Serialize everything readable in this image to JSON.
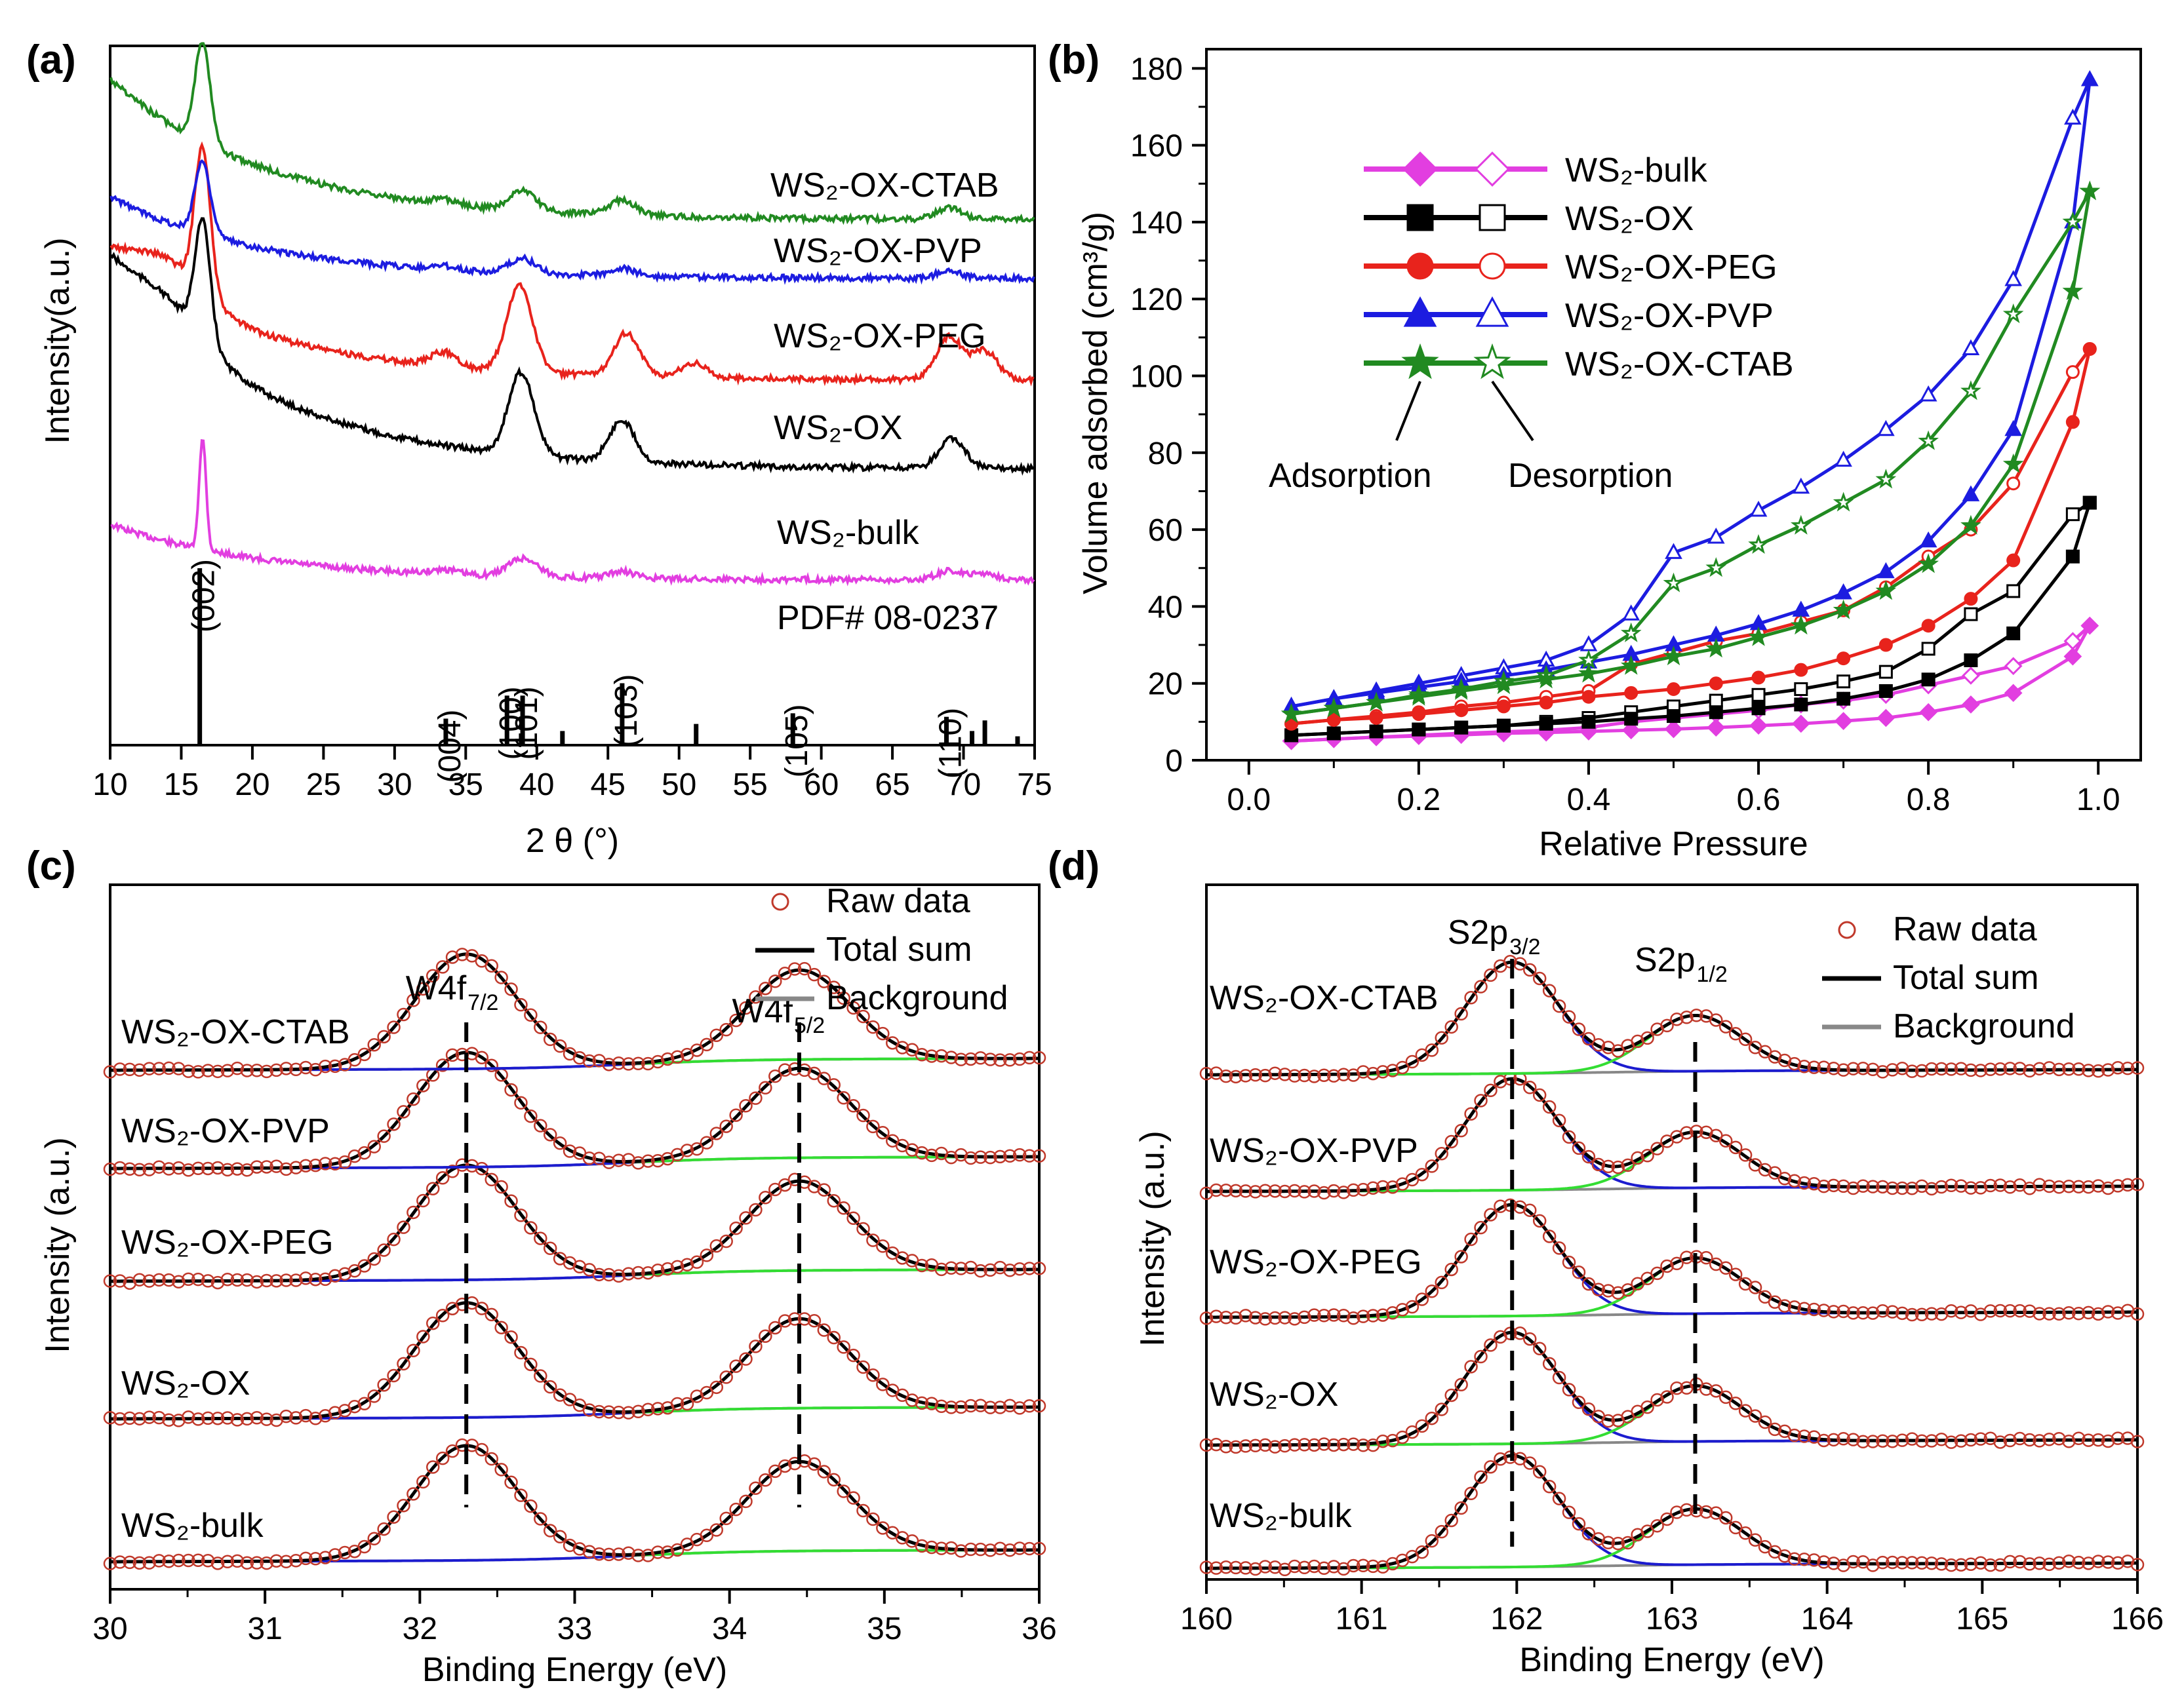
{
  "chart_data": [
    {
      "id": "a",
      "panel_label": "(a)",
      "type": "line",
      "title": "",
      "xlabel": "2 θ (°)",
      "ylabel": "Intensity(a.u.)",
      "xlim": [
        10,
        75
      ],
      "xticks": [
        "10",
        "15",
        "20",
        "25",
        "30",
        "35",
        "40",
        "45",
        "50",
        "55",
        "60",
        "65",
        "70",
        "75"
      ],
      "series": [
        {
          "name": "WS₂-bulk",
          "color": "#e23ee0",
          "peaks": [
            [
              16.5,
              1.0
            ],
            [
              33.5,
              0.04
            ],
            [
              38.5,
              0.09
            ],
            [
              39.5,
              0.1
            ],
            [
              46.0,
              0.06
            ],
            [
              69.0,
              0.08
            ],
            [
              71.5,
              0.06
            ]
          ]
        },
        {
          "name": "WS₂-OX",
          "color": "#000000",
          "peaks": [
            [
              16.5,
              1.0
            ],
            [
              38.9,
              0.7
            ],
            [
              46.0,
              0.35
            ],
            [
              69.2,
              0.25
            ]
          ]
        },
        {
          "name": "WS₂-OX-PEG",
          "color": "#e8231c",
          "peaks": [
            [
              16.5,
              1.0
            ],
            [
              33.5,
              0.1
            ],
            [
              38.8,
              0.6
            ],
            [
              46.3,
              0.3
            ],
            [
              51.0,
              0.1
            ],
            [
              69.0,
              0.3
            ],
            [
              71.5,
              0.2
            ]
          ]
        },
        {
          "name": "WS₂-OX-PVP",
          "color": "#1c1ce0",
          "peaks": [
            [
              16.5,
              1.0
            ],
            [
              33.5,
              0.05
            ],
            [
              39.0,
              0.2
            ],
            [
              46.0,
              0.1
            ],
            [
              69.0,
              0.1
            ]
          ]
        },
        {
          "name": "WS₂-OX-CTAB",
          "color": "#218a21",
          "peaks": [
            [
              16.5,
              1.0
            ],
            [
              33.5,
              0.05
            ],
            [
              39.0,
              0.2
            ],
            [
              46.0,
              0.15
            ],
            [
              69.0,
              0.12
            ]
          ]
        }
      ],
      "reference": {
        "name": "PDF# 08-0237",
        "lines": [
          {
            "x": 16.3,
            "h": 1.0,
            "label": "(002)"
          },
          {
            "x": 33.6,
            "h": 0.15,
            "label": "(004)"
          },
          {
            "x": 37.9,
            "h": 0.28,
            "label": "(100)"
          },
          {
            "x": 39.0,
            "h": 0.28,
            "label": "(101)"
          },
          {
            "x": 41.8,
            "h": 0.08,
            "label": ""
          },
          {
            "x": 46.0,
            "h": 0.35,
            "label": "(103)"
          },
          {
            "x": 51.2,
            "h": 0.12,
            "label": ""
          },
          {
            "x": 58.0,
            "h": 0.18,
            "label": "(105)"
          },
          {
            "x": 68.8,
            "h": 0.16,
            "label": "(110)"
          },
          {
            "x": 70.6,
            "h": 0.08,
            "label": ""
          },
          {
            "x": 71.5,
            "h": 0.14,
            "label": ""
          },
          {
            "x": 73.8,
            "h": 0.05,
            "label": ""
          }
        ]
      }
    },
    {
      "id": "b",
      "panel_label": "(b)",
      "type": "line",
      "title": "",
      "xlabel": "Relative Pressure",
      "ylabel": "Volume adsorbed (cm³/g)",
      "xlim": [
        -0.05,
        1.05
      ],
      "ylim": [
        0,
        185
      ],
      "xticks": [
        0.0,
        0.2,
        0.4,
        0.6,
        0.8,
        1.0
      ],
      "xtick_labels": [
        "0.0",
        "0.2",
        "0.4",
        "0.6",
        "0.8",
        "1.0"
      ],
      "yticks": [
        0,
        20,
        40,
        60,
        80,
        100,
        120,
        140,
        160,
        180
      ],
      "ytick_labels": [
        "0",
        "20",
        "40",
        "60",
        "80",
        "100",
        "120",
        "140",
        "160",
        "180"
      ],
      "legend_position": "top-left",
      "legend_labels": {
        "adsorption": "Adsorption",
        "desorption": "Desorption"
      },
      "series": [
        {
          "name": "WS₂-bulk",
          "color": "#e23ee0",
          "marker": "diamond",
          "x": [
            0.05,
            0.1,
            0.15,
            0.2,
            0.25,
            0.3,
            0.35,
            0.4,
            0.45,
            0.5,
            0.55,
            0.6,
            0.65,
            0.7,
            0.75,
            0.8,
            0.85,
            0.9,
            0.97,
            0.99
          ],
          "adsorption": [
            5,
            5.5,
            6,
            6.3,
            6.6,
            7,
            7.2,
            7.5,
            7.8,
            8.1,
            8.5,
            9,
            9.5,
            10.2,
            11,
            12.5,
            14.5,
            17.5,
            27,
            35
          ],
          "desorption": [
            5,
            5.5,
            6,
            6.5,
            7,
            7.4,
            7.8,
            8.5,
            10,
            11,
            12,
            13,
            14.5,
            15.5,
            17,
            19.5,
            22,
            24.5,
            31,
            35
          ]
        },
        {
          "name": "WS₂-OX",
          "color": "#000000",
          "marker": "square",
          "x": [
            0.05,
            0.1,
            0.15,
            0.2,
            0.25,
            0.3,
            0.35,
            0.4,
            0.45,
            0.5,
            0.55,
            0.6,
            0.65,
            0.7,
            0.75,
            0.8,
            0.85,
            0.9,
            0.97,
            0.99
          ],
          "adsorption": [
            6.5,
            7,
            7.5,
            8,
            8.5,
            9,
            9.5,
            10,
            10.8,
            11.5,
            12.5,
            13.5,
            14.5,
            16,
            18,
            21,
            26,
            33,
            53,
            67
          ],
          "desorption": [
            6.5,
            7,
            7.5,
            8,
            8.5,
            9,
            10,
            11,
            12.5,
            14,
            15.5,
            17,
            18.5,
            20.5,
            23,
            29,
            38,
            44,
            64,
            67
          ]
        },
        {
          "name": "WS₂-OX-PEG",
          "color": "#e8231c",
          "marker": "circle",
          "x": [
            0.05,
            0.1,
            0.15,
            0.2,
            0.25,
            0.3,
            0.35,
            0.4,
            0.45,
            0.5,
            0.55,
            0.6,
            0.65,
            0.7,
            0.75,
            0.8,
            0.85,
            0.9,
            0.97,
            0.99
          ],
          "adsorption": [
            9.5,
            10.5,
            11,
            12,
            13,
            14,
            15,
            16.5,
            17.5,
            18.5,
            20,
            21.5,
            23.5,
            26.5,
            30,
            35,
            42,
            52,
            88,
            107
          ],
          "desorption": [
            9.5,
            10.5,
            11.5,
            12.5,
            14,
            15,
            16.5,
            18,
            25,
            28,
            31,
            33,
            36,
            39,
            45,
            53,
            60,
            72,
            101,
            107
          ]
        },
        {
          "name": "WS₂-OX-PVP",
          "color": "#1c1ce0",
          "marker": "triangle",
          "x": [
            0.05,
            0.1,
            0.15,
            0.2,
            0.25,
            0.3,
            0.35,
            0.4,
            0.45,
            0.5,
            0.55,
            0.6,
            0.65,
            0.7,
            0.75,
            0.8,
            0.85,
            0.9,
            0.97,
            0.99
          ],
          "adsorption": [
            14,
            16,
            17.5,
            19,
            20.5,
            22,
            23.5,
            25.5,
            27.5,
            30,
            32.5,
            35.5,
            39,
            43.5,
            49,
            57,
            69,
            86,
            140,
            177
          ],
          "desorption": [
            14,
            16,
            18,
            20,
            22,
            24,
            26,
            30,
            38,
            54,
            58,
            65,
            71,
            78,
            86,
            95,
            107,
            125,
            167,
            177
          ]
        },
        {
          "name": "WS₂-OX-CTAB",
          "color": "#218a21",
          "marker": "star",
          "x": [
            0.05,
            0.1,
            0.15,
            0.2,
            0.25,
            0.3,
            0.35,
            0.4,
            0.45,
            0.5,
            0.55,
            0.6,
            0.65,
            0.7,
            0.75,
            0.8,
            0.85,
            0.9,
            0.97,
            0.99
          ],
          "adsorption": [
            12,
            13.5,
            15,
            16.5,
            18,
            19.5,
            21,
            22.5,
            24.5,
            27,
            29,
            32,
            35,
            39,
            44,
            51,
            61,
            77,
            122,
            148
          ],
          "desorption": [
            12,
            13.5,
            15,
            17,
            18.5,
            20.5,
            22,
            26,
            33,
            46,
            50,
            56,
            61,
            67,
            73,
            83,
            96,
            116,
            140,
            148
          ]
        }
      ]
    },
    {
      "id": "c",
      "panel_label": "(c)",
      "type": "line",
      "title": "",
      "xlabel": "Binding Energy (eV)",
      "ylabel": "Intensity (a.u.)",
      "xlim": [
        30,
        36
      ],
      "xticks": [
        "30",
        "31",
        "32",
        "33",
        "34",
        "35",
        "36"
      ],
      "peak_labels": [
        {
          "main": "W4f",
          "sub": "7/2",
          "x": 32.3
        },
        {
          "main": "W4f",
          "sub": "5/2",
          "x": 34.45
        }
      ],
      "legend": [
        "Raw data",
        "Total sum",
        "Background"
      ],
      "series": [
        {
          "name": "WS₂-bulk",
          "peaks": [
            [
              32.3,
              1.0
            ],
            [
              34.45,
              0.78
            ]
          ]
        },
        {
          "name": "WS₂-OX",
          "peaks": [
            [
              32.3,
              1.0
            ],
            [
              34.45,
              0.78
            ]
          ]
        },
        {
          "name": "WS₂-OX-PEG",
          "peaks": [
            [
              32.3,
              1.0
            ],
            [
              34.45,
              0.78
            ]
          ]
        },
        {
          "name": "WS₂-OX-PVP",
          "peaks": [
            [
              32.3,
              1.0
            ],
            [
              34.45,
              0.78
            ]
          ]
        },
        {
          "name": "WS₂-OX-CTAB",
          "peaks": [
            [
              32.3,
              1.0
            ],
            [
              34.45,
              0.78
            ]
          ]
        }
      ]
    },
    {
      "id": "d",
      "panel_label": "(d)",
      "type": "line",
      "title": "",
      "xlabel": "Binding Energy (eV)",
      "ylabel": "Intensity (a.u.)",
      "xlim": [
        160,
        166
      ],
      "xticks": [
        "160",
        "161",
        "162",
        "163",
        "164",
        "165",
        "166"
      ],
      "peak_labels": [
        {
          "main": "S2p",
          "sub": "3/2",
          "x": 161.97
        },
        {
          "main": "S2p",
          "sub": "1/2",
          "x": 163.15
        }
      ],
      "legend": [
        "Raw data",
        "Total sum",
        "Background"
      ],
      "series": [
        {
          "name": "WS₂-bulk",
          "peaks": [
            [
              161.97,
              1.0
            ],
            [
              163.15,
              0.5
            ]
          ]
        },
        {
          "name": "WS₂-OX",
          "peaks": [
            [
              161.97,
              1.0
            ],
            [
              163.15,
              0.5
            ]
          ]
        },
        {
          "name": "WS₂-OX-PEG",
          "peaks": [
            [
              161.97,
              1.0
            ],
            [
              163.15,
              0.5
            ]
          ]
        },
        {
          "name": "WS₂-OX-PVP",
          "peaks": [
            [
              161.97,
              1.0
            ],
            [
              163.15,
              0.5
            ]
          ]
        },
        {
          "name": "WS₂-OX-CTAB",
          "peaks": [
            [
              161.97,
              1.0
            ],
            [
              163.15,
              0.5
            ]
          ]
        }
      ]
    }
  ],
  "colors": {
    "raw": "#c0392b",
    "sum": "#000000",
    "background": "#888888",
    "fit_low": "#1c1ccf",
    "fit_high": "#33dd33"
  }
}
